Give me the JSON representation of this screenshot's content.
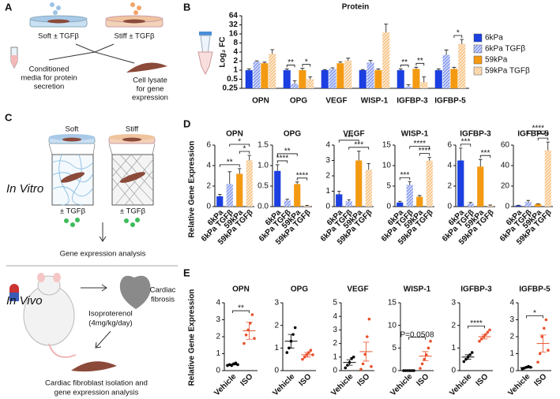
{
  "figure": {
    "panel_labels": [
      "A",
      "B",
      "C",
      "D",
      "E"
    ],
    "panel_a": {
      "soft": "Soft ± TGFβ",
      "stiff": "Stiff ± TGFβ",
      "media": [
        "Conditioned",
        "media for protein",
        "secretion"
      ],
      "lysate": [
        "Cell lysate",
        "for gene",
        "expression"
      ]
    },
    "panel_c": {
      "soft": "Soft",
      "stiff": "Stiff",
      "in_vitro": "In Vitro",
      "tgf_soft": "± TGFβ",
      "tgf_stiff": "± TGFβ",
      "gene_expression": "Gene expression analysis",
      "in_vivo": "In Vivo",
      "drug": [
        "Isoproterenol",
        "(4mg/kg/day)"
      ],
      "fibrosis": [
        "Cardiac",
        "fibrosis"
      ],
      "isolation": [
        "Cardiac fibroblast isolation and",
        "gene expression analysis"
      ]
    }
  },
  "chart_data": [
    {
      "type": "bar",
      "title": "Protein",
      "ylabel": "Log₂ FC",
      "yscale": "log",
      "categories": [
        "OPN",
        "OPG",
        "VEGF",
        "WISP-1",
        "IGFBP-3",
        "IGFBP-5"
      ],
      "series": [
        {
          "name": "6kPa",
          "color": "#1b3fe0",
          "hatched": false,
          "values": [
            1,
            1,
            1,
            1,
            1,
            1
          ],
          "errors": [
            0.1,
            0.1,
            0.05,
            0.05,
            0.1,
            0.1
          ]
        },
        {
          "name": "6kPa TGFβ",
          "color": "#8c9ff0",
          "hatched": true,
          "values": [
            1.9,
            0.35,
            1.1,
            1.8,
            0.28,
            3.2
          ],
          "errors": [
            0.15,
            0.1,
            0.1,
            0.3,
            0.05,
            1.5
          ]
        },
        {
          "name": "59kPa",
          "color": "#f39a12",
          "hatched": false,
          "values": [
            1.7,
            1.0,
            1.7,
            1.0,
            1.1,
            1.1
          ],
          "errors": [
            0.15,
            0.15,
            0.2,
            0.1,
            0.15,
            0.15
          ]
        },
        {
          "name": "59kPa TGFβ",
          "color": "#f7c68a",
          "hatched": true,
          "values": [
            3.5,
            0.5,
            2.1,
            18,
            0.4,
            7.5
          ],
          "errors": [
            1.3,
            0.1,
            0.4,
            16,
            0.2,
            3
          ]
        }
      ],
      "ylim": [
        0.25,
        64
      ],
      "yticks": [
        0.25,
        0.5,
        1,
        2,
        4,
        8,
        16,
        32,
        64
      ],
      "legend": "right",
      "significance": [
        {
          "category": "OPG",
          "pair": [
            "6kPa",
            "6kPa TGFβ"
          ],
          "label": "**"
        },
        {
          "category": "OPG",
          "pair": [
            "59kPa",
            "59kPa TGFβ"
          ],
          "label": "*"
        },
        {
          "category": "IGFBP-3",
          "pair": [
            "6kPa",
            "6kPa TGFβ"
          ],
          "label": "**"
        },
        {
          "category": "IGFBP-3",
          "pair": [
            "59kPa",
            "59kPa TGFβ"
          ],
          "label": "**"
        },
        {
          "category": "IGFBP-5",
          "pair": [
            "59kPa",
            "59kPa TGFβ"
          ],
          "label": "*"
        }
      ]
    },
    {
      "type": "bar",
      "title": "OPN",
      "ylabel": "Relative Gene Expression",
      "categories": [
        "6kPa",
        "6kPa TGFβ",
        "59kPa",
        "59kPa TGFβ"
      ],
      "colors": [
        "#1b3fe0",
        "#8c9ff0",
        "#f39a12",
        "#f7c68a"
      ],
      "hatched": [
        false,
        true,
        false,
        true
      ],
      "values": [
        1,
        2.2,
        3.2,
        4.5
      ],
      "errors": [
        0.2,
        1.2,
        0.5,
        0.5
      ],
      "ylim": [
        0,
        6
      ],
      "yticks": [
        0,
        2,
        4,
        6
      ],
      "significance": [
        {
          "pair": [
            "6kPa",
            "59kPa"
          ],
          "label": "**"
        },
        {
          "pair": [
            "59kPa",
            "59kPa TGFβ"
          ],
          "label": "*"
        },
        {
          "pair": [
            "6kPa TGFβ",
            "59kPa TGFβ"
          ],
          "label": "*"
        }
      ]
    },
    {
      "type": "bar",
      "title": "OPG",
      "categories": [
        "6kPa",
        "6kPa TGFβ",
        "59kPa",
        "59kPa TGFβ"
      ],
      "colors": [
        "#1b3fe0",
        "#8c9ff0",
        "#f39a12",
        "#f7c68a"
      ],
      "hatched": [
        false,
        true,
        false,
        true
      ],
      "values": [
        0.87,
        0.15,
        0.55,
        0.02
      ],
      "errors": [
        0.15,
        0.03,
        0.05,
        0.01
      ],
      "ylim": [
        0,
        1.5
      ],
      "yticks": [
        {
          "value": 0,
          "label": "0.0"
        },
        0.5,
        {
          "value": 1,
          "label": "1.0"
        },
        1.5
      ],
      "significance": [
        {
          "pair": [
            "6kPa",
            "6kPa TGFβ"
          ],
          "label": "****"
        },
        {
          "pair": [
            "59kPa",
            "59kPa TGFβ"
          ],
          "label": "****"
        },
        {
          "pair": [
            "6kPa",
            "59kPa"
          ],
          "label": "**"
        }
      ]
    },
    {
      "type": "bar",
      "title": "VEGF",
      "categories": [
        "6kPa",
        "6kPa TGFβ",
        "59kPa",
        "59kPa TGFβ"
      ],
      "colors": [
        "#1b3fe0",
        "#8c9ff0",
        "#f39a12",
        "#f7c68a"
      ],
      "hatched": [
        false,
        true,
        false,
        true
      ],
      "values": [
        0.8,
        0.35,
        3.0,
        2.4
      ],
      "errors": [
        0.2,
        0.1,
        0.6,
        0.4
      ],
      "ylim": [
        0,
        4
      ],
      "yticks": [
        0,
        1,
        2,
        3,
        4
      ],
      "significance": [
        {
          "pair": [
            "6kPa TGFβ",
            "59kPa TGFβ"
          ],
          "label": "***"
        },
        {
          "pair": [
            "6kPa",
            "59kPa"
          ],
          "label": "***"
        }
      ]
    },
    {
      "type": "bar",
      "title": "WISP-1",
      "categories": [
        "6kPa",
        "6kPa TGFβ",
        "59kPa",
        "59kPa TGFβ"
      ],
      "colors": [
        "#1b3fe0",
        "#8c9ff0",
        "#f39a12",
        "#f7c68a"
      ],
      "hatched": [
        false,
        true,
        false,
        true
      ],
      "values": [
        1,
        5.3,
        2.4,
        11.2
      ],
      "errors": [
        0.3,
        0.8,
        0.3,
        0.8
      ],
      "ylim": [
        0,
        15
      ],
      "yticks": [
        0,
        5,
        10,
        15
      ],
      "significance": [
        {
          "pair": [
            "6kPa",
            "6kPa TGFβ"
          ],
          "label": "***"
        },
        {
          "pair": [
            "59kPa",
            "59kPa TGFβ"
          ],
          "label": "****"
        },
        {
          "pair": [
            "6kPa TGFβ",
            "59kPa TGFβ"
          ],
          "label": "****"
        }
      ]
    },
    {
      "type": "bar",
      "title": "IGFBP-3",
      "categories": [
        "6kPa",
        "6kPa TGFβ",
        "59kPa",
        "59kPa TGFβ"
      ],
      "colors": [
        "#1b3fe0",
        "#8c9ff0",
        "#f39a12",
        "#f7c68a"
      ],
      "hatched": [
        false,
        true,
        false,
        true
      ],
      "values": [
        4.5,
        0.3,
        3.9,
        0.1
      ],
      "errors": [
        1.2,
        0.1,
        0.7,
        0.05
      ],
      "ylim": [
        0,
        6
      ],
      "yticks": [
        0,
        2,
        4,
        6
      ],
      "significance": [
        {
          "pair": [
            "6kPa",
            "6kPa TGFβ"
          ],
          "label": "***"
        },
        {
          "pair": [
            "59kPa",
            "59kPa TGFβ"
          ],
          "label": "***"
        }
      ]
    },
    {
      "type": "bar",
      "title": "IGFBP-5",
      "categories": [
        "6kPa",
        "6kPa TGFβ",
        "59kPa",
        "59kPa TGFβ"
      ],
      "colors": [
        "#1b3fe0",
        "#8c9ff0",
        "#f39a12",
        "#f7c68a"
      ],
      "hatched": [
        false,
        true,
        false,
        true
      ],
      "values": [
        1,
        4.5,
        2.5,
        55
      ],
      "errors": [
        0.3,
        1.5,
        0.3,
        8
      ],
      "ylim": [
        0,
        60
      ],
      "yticks": [
        0,
        20,
        40,
        60
      ],
      "significance": [
        {
          "pair": [
            "59kPa",
            "59kPa TGFβ"
          ],
          "label": "****"
        },
        {
          "pair": [
            "6kPa TGFβ",
            "59kPa TGFβ"
          ],
          "label": "****"
        }
      ]
    },
    {
      "type": "strip",
      "title": "OPN",
      "ylabel": "Relative Gene Expression",
      "categories": [
        "Vehicle",
        "ISO"
      ],
      "colors": [
        "#000000",
        "#e8502a"
      ],
      "points": [
        [
          0.3,
          0.35,
          0.3,
          0.4,
          0.45,
          0.35
        ],
        [
          1.6,
          2.1,
          2.4,
          2.8,
          3.3,
          1.9
        ]
      ],
      "means": [
        0.36,
        2.35
      ],
      "sems": [
        0.03,
        0.5
      ],
      "ylim": [
        0,
        4
      ],
      "yticks": [
        0,
        1,
        2,
        3,
        4
      ],
      "significance": [
        {
          "pair": [
            "Vehicle",
            "ISO"
          ],
          "label": "**"
        }
      ]
    },
    {
      "type": "strip",
      "title": "OPG",
      "categories": [
        "Vehicle",
        "ISO"
      ],
      "colors": [
        "#000000",
        "#e8502a"
      ],
      "points": [
        [
          0.8,
          1.0,
          1.3,
          1.6,
          1.9
        ],
        [
          0.5,
          0.6,
          0.7,
          0.8,
          0.9,
          0.7
        ]
      ],
      "means": [
        1.3,
        0.7
      ],
      "sems": [
        0.3,
        0.1
      ],
      "ylim": [
        0,
        3
      ],
      "yticks": [
        0,
        1,
        2,
        3
      ]
    },
    {
      "type": "strip",
      "title": "VEGF",
      "categories": [
        "Vehicle",
        "ISO"
      ],
      "colors": [
        "#000000",
        "#e8502a"
      ],
      "points": [
        [
          0.2,
          0.4,
          0.6,
          0.9,
          1.0
        ],
        [
          0.1,
          0.5,
          1.2,
          2.5,
          3.8,
          0.3
        ]
      ],
      "means": [
        0.6,
        1.4
      ],
      "sems": [
        0.2,
        0.7
      ],
      "ylim": [
        0,
        5
      ],
      "yticks": [
        0,
        1,
        2,
        3,
        4,
        5
      ]
    },
    {
      "type": "strip",
      "title": "WISP-1",
      "categories": [
        "Vehicle",
        "ISO"
      ],
      "colors": [
        "#000000",
        "#e8502a"
      ],
      "points": [
        [
          0,
          0,
          0,
          0,
          0,
          0
        ],
        [
          0.5,
          1.5,
          2.5,
          3.5,
          5,
          6.5
        ]
      ],
      "means": [
        0,
        3.2
      ],
      "sems": [
        0,
        1.0
      ],
      "ylim": [
        0,
        15
      ],
      "yticks": [
        0,
        5,
        10,
        15
      ],
      "significance": [
        {
          "pair": [
            "Vehicle",
            "ISO"
          ],
          "label": "P=0.0508"
        }
      ]
    },
    {
      "type": "strip",
      "title": "IGFBP-3",
      "categories": [
        "Vehicle",
        "ISO"
      ],
      "colors": [
        "#000000",
        "#e8502a"
      ],
      "points": [
        [
          0.4,
          0.5,
          0.6,
          0.7,
          0.8
        ],
        [
          1.3,
          1.4,
          1.5,
          1.6,
          1.7,
          1.8
        ]
      ],
      "means": [
        0.6,
        1.5
      ],
      "sems": [
        0.1,
        0.1
      ],
      "ylim": [
        0,
        3
      ],
      "yticks": [
        0,
        1,
        2,
        3
      ],
      "significance": [
        {
          "pair": [
            "Vehicle",
            "ISO"
          ],
          "label": "****"
        }
      ]
    },
    {
      "type": "strip",
      "title": "IGFBP-5",
      "categories": [
        "Vehicle",
        "ISO"
      ],
      "colors": [
        "#000000",
        "#e8502a"
      ],
      "points": [
        [
          0.1,
          0.15,
          0.2,
          0.25,
          0.2
        ],
        [
          0.5,
          1.0,
          2.0,
          2.5,
          3.0,
          1.2
        ]
      ],
      "means": [
        0.18,
        1.6
      ],
      "sems": [
        0.03,
        0.5
      ],
      "ylim": [
        0,
        4
      ],
      "yticks": [
        0,
        1,
        2,
        3,
        4
      ],
      "significance": [
        {
          "pair": [
            "Vehicle",
            "ISO"
          ],
          "label": "*"
        }
      ]
    }
  ]
}
